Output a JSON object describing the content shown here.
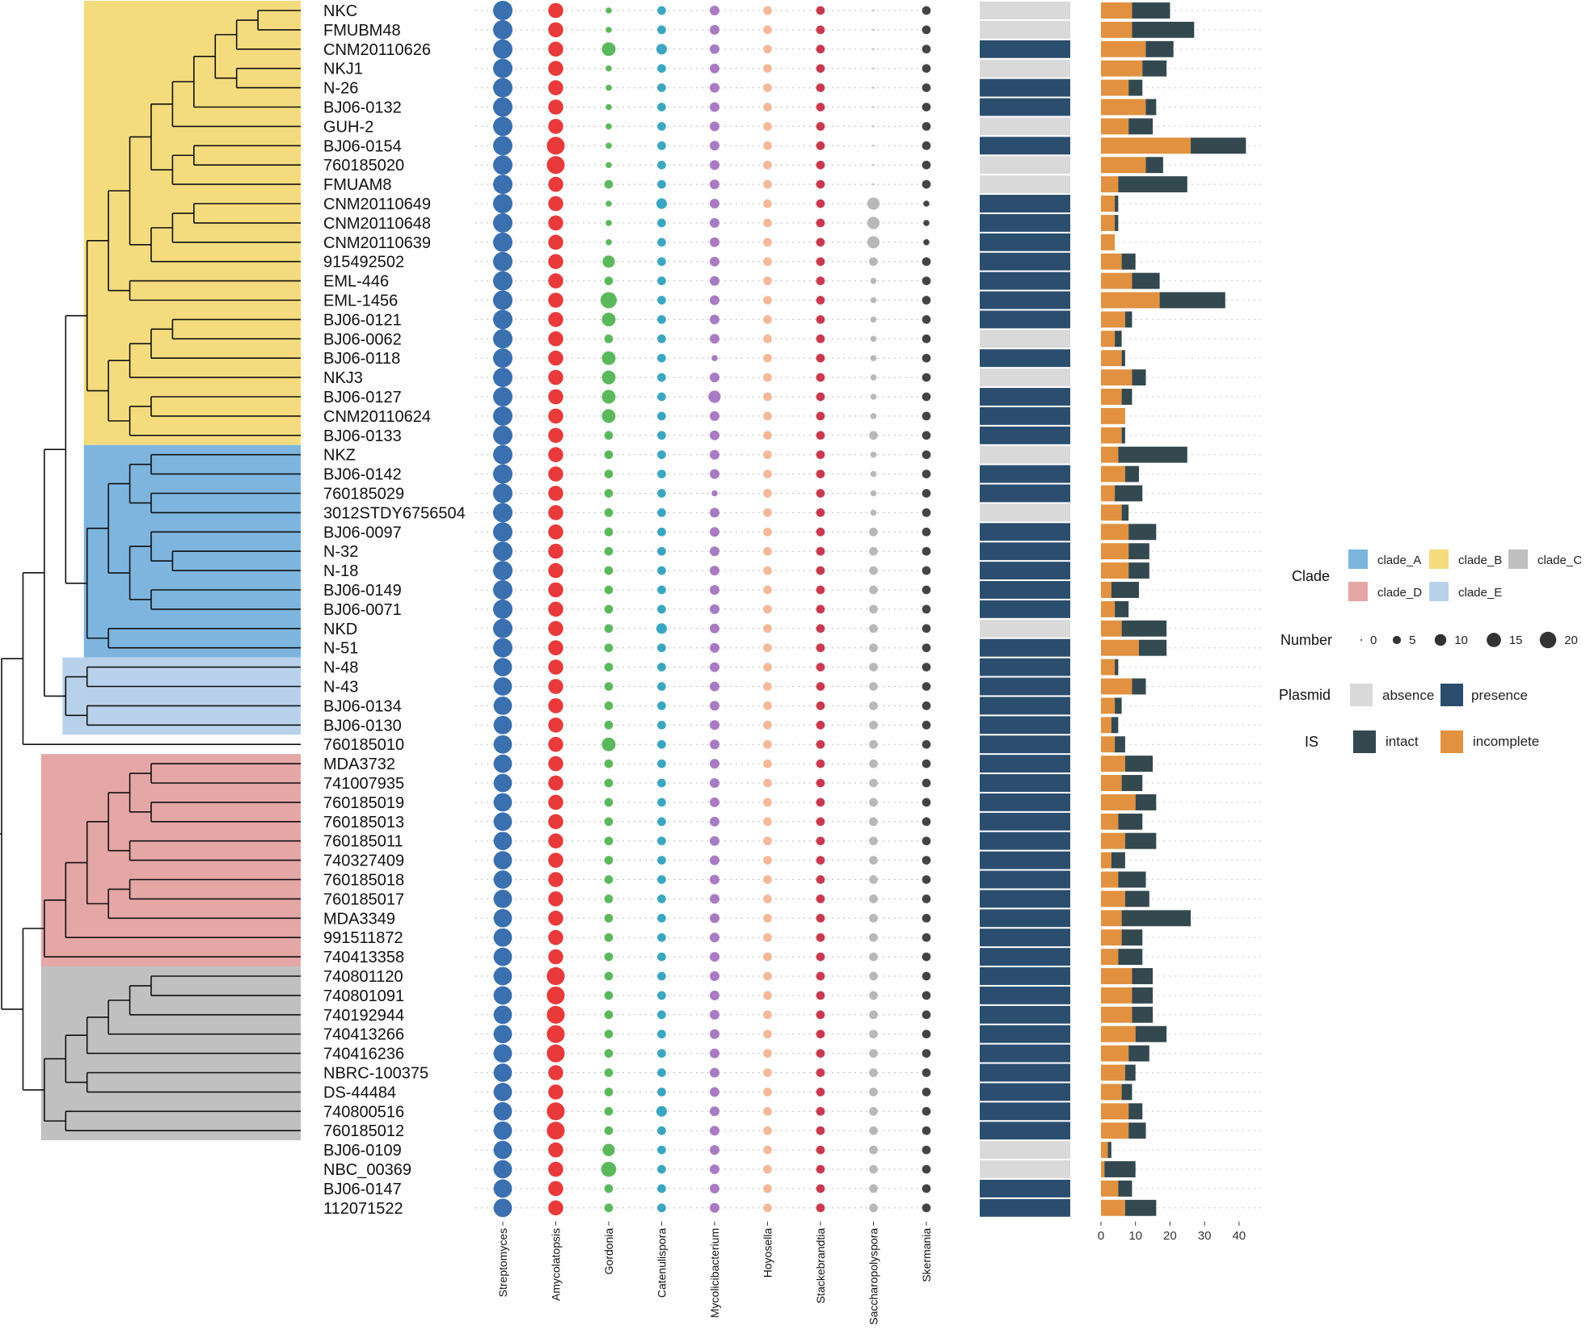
{
  "chart_data": {
    "type": "phylogenetic-tree-heatmap",
    "taxa": [
      "NKC",
      "FMUBM48",
      "CNM20110626",
      "NKJ1",
      "N-26",
      "BJ06-0132",
      "GUH-2",
      "BJ06-0154",
      "760185020",
      "FMUAM8",
      "CNM20110649",
      "CNM20110648",
      "CNM20110639",
      "915492502",
      "EML-446",
      "EML-1456",
      "BJ06-0121",
      "BJ06-0062",
      "BJ06-0118",
      "NKJ3",
      "BJ06-0127",
      "CNM20110624",
      "BJ06-0133",
      "NKZ",
      "BJ06-0142",
      "760185029",
      "3012STDY6756504",
      "BJ06-0097",
      "N-32",
      "N-18",
      "BJ06-0149",
      "BJ06-0071",
      "NKD",
      "N-51",
      "N-48",
      "N-43",
      "BJ06-0134",
      "BJ06-0130",
      "760185010",
      "MDA3732",
      "741007935",
      "760185019",
      "760185013",
      "760185011",
      "740327409",
      "760185018",
      "760185017",
      "MDA3349",
      "991511872",
      "740413358",
      "740801120",
      "740801091",
      "740192944",
      "740413266",
      "740416236",
      "NBRC-100375",
      "DS-44484",
      "740800516",
      "760185012",
      "BJ06-0109",
      "NBC_00369",
      "BJ06-0147",
      "112071522"
    ],
    "tree": {
      "depths": [
        0,
        10,
        12,
        16,
        14,
        12,
        14,
        12,
        14,
        15,
        18,
        14,
        16,
        14,
        14,
        14,
        13,
        15,
        16,
        16,
        10,
        11,
        14,
        13,
        14,
        16,
        15,
        14,
        14,
        11,
        13,
        12,
        12,
        13,
        14,
        16,
        15,
        14,
        14,
        14,
        12,
        14,
        13,
        12,
        8,
        14,
        11,
        13,
        14,
        15,
        15,
        15,
        12,
        15,
        16,
        16,
        17,
        17,
        14,
        15,
        15,
        12,
        14,
        14,
        13,
        14,
        13,
        14,
        15,
        15,
        14,
        12,
        12,
        14,
        13,
        14,
        14,
        12,
        14,
        15,
        15,
        14,
        13,
        14,
        14,
        13,
        13,
        14,
        17,
        17,
        15,
        12,
        15,
        14,
        6,
        7,
        5,
        7,
        7,
        8,
        7,
        7,
        10,
        10,
        5
      ],
      "node_ids": {
        "root": "root"
      },
      "newick": "(((((((((((((NKC,FMUBM48),CNM20110626),(NKJ1,N-26)),BJ06-0132),GUH-2),((BJ06-0154,760185020),FMUAM8)),(((CNM20110649,CNM20110648),CNM20110639),915492502)),(EML-446,EML-1456)),((((BJ06-0121,BJ06-0062),BJ06-0118),NKJ3),((BJ06-0127,CNM20110624),BJ06-0133))),((((NKZ,BJ06-0142),(760185029,3012STDY6756504)),((BJ06-0097,(N-32,N-18)),(BJ06-0149,BJ06-0071))),(NKD,N-51))),((N-48,N-43),(BJ06-0134,BJ06-0130))),760185010),(((((((MDA3732,741007935),(760185019,760185013)),(760185011,740327409)),((760185018,760185017),MDA3349)),991511872),740413358),((((((740801120,740801091),740192944),740413266),740416236),(NBRC-100375,DS-44484)),(740800516,760185012)))),BJ06-0109),((NBC_00369,BJ06-0147),112071522));"
    },
    "clades": [
      {
        "name": "clade_B",
        "color": "#F4DC7E",
        "first": 0,
        "last": 22
      },
      {
        "name": "clade_A",
        "color": "#7DB5DE",
        "first": 23,
        "last": 33
      },
      {
        "name": "clade_E",
        "color": "#BAD1EC",
        "first": 34,
        "last": 37
      },
      {
        "name": "clade_D",
        "color": "#E5A6A6",
        "first": 39,
        "last": 49
      },
      {
        "name": "clade_C",
        "color": "#C0C0C0",
        "first": 50,
        "last": 58
      }
    ],
    "genera": [
      {
        "name": "Streptomyces",
        "color": "#3A6FB0",
        "values": [
          20,
          20,
          20,
          20,
          20,
          20,
          20,
          20,
          20,
          20,
          20,
          20,
          20,
          20,
          20,
          20,
          20,
          20,
          20,
          20,
          20,
          20,
          20,
          20,
          20,
          20,
          20,
          20,
          20,
          20,
          20,
          20,
          20,
          20,
          18,
          18,
          18,
          18,
          18,
          18,
          18,
          18,
          18,
          18,
          18,
          18,
          18,
          18,
          18,
          18,
          18,
          18,
          18,
          18,
          18,
          18,
          18,
          18,
          18,
          18,
          18,
          18,
          18
        ]
      },
      {
        "name": "Amycolatopsis",
        "color": "#E83A3A",
        "values": [
          12,
          12,
          12,
          12,
          12,
          12,
          12,
          17,
          17,
          12,
          12,
          12,
          12,
          12,
          12,
          12,
          12,
          12,
          12,
          12,
          12,
          12,
          12,
          12,
          12,
          12,
          12,
          12,
          12,
          12,
          12,
          12,
          12,
          12,
          12,
          12,
          12,
          12,
          12,
          12,
          12,
          12,
          12,
          12,
          12,
          12,
          12,
          12,
          12,
          12,
          17,
          17,
          17,
          17,
          17,
          12,
          12,
          17,
          17,
          12,
          12,
          12,
          12
        ]
      },
      {
        "name": "Gordonia",
        "color": "#5CB85C",
        "values": [
          2,
          2,
          10,
          2,
          2,
          2,
          2,
          2,
          2,
          4,
          2,
          2,
          2,
          8,
          4,
          14,
          10,
          4,
          10,
          10,
          10,
          10,
          4,
          4,
          4,
          4,
          4,
          4,
          4,
          4,
          4,
          4,
          4,
          4,
          4,
          4,
          4,
          4,
          10,
          4,
          4,
          4,
          4,
          4,
          4,
          4,
          4,
          4,
          4,
          4,
          4,
          4,
          4,
          4,
          4,
          4,
          4,
          4,
          4,
          8,
          12,
          4,
          4
        ]
      },
      {
        "name": "Catenulispora",
        "color": "#3AA6C2",
        "values": [
          4,
          4,
          6,
          4,
          4,
          4,
          4,
          4,
          4,
          4,
          6,
          4,
          4,
          4,
          4,
          4,
          4,
          4,
          4,
          4,
          4,
          4,
          4,
          4,
          4,
          4,
          4,
          4,
          4,
          4,
          4,
          4,
          6,
          4,
          4,
          4,
          4,
          4,
          4,
          4,
          4,
          4,
          4,
          4,
          4,
          4,
          4,
          4,
          4,
          4,
          4,
          4,
          4,
          4,
          4,
          4,
          4,
          6,
          4,
          4,
          4,
          4,
          4
        ]
      },
      {
        "name": "Mycolicibacterium",
        "color": "#A97BC3",
        "values": [
          5,
          5,
          5,
          5,
          5,
          5,
          5,
          5,
          5,
          5,
          5,
          5,
          5,
          5,
          5,
          5,
          5,
          5,
          2,
          5,
          8,
          5,
          5,
          5,
          5,
          2,
          5,
          5,
          5,
          5,
          5,
          5,
          5,
          5,
          5,
          5,
          5,
          5,
          5,
          5,
          5,
          5,
          5,
          5,
          5,
          5,
          5,
          5,
          5,
          5,
          5,
          5,
          5,
          5,
          5,
          5,
          5,
          5,
          5,
          5,
          5,
          5,
          5
        ]
      },
      {
        "name": "Hoyosella",
        "color": "#F4B89A",
        "values": [
          4,
          4,
          4,
          4,
          4,
          4,
          4,
          4,
          4,
          4,
          4,
          4,
          4,
          4,
          4,
          4,
          4,
          4,
          4,
          4,
          4,
          4,
          4,
          4,
          4,
          4,
          4,
          4,
          4,
          4,
          4,
          4,
          4,
          4,
          4,
          4,
          4,
          4,
          4,
          4,
          4,
          4,
          4,
          4,
          4,
          4,
          4,
          4,
          4,
          4,
          4,
          4,
          4,
          4,
          4,
          4,
          4,
          4,
          4,
          4,
          4,
          4,
          4
        ]
      },
      {
        "name": "Stackebrandtia",
        "color": "#C93A4E",
        "values": [
          4,
          4,
          4,
          4,
          4,
          4,
          4,
          4,
          4,
          4,
          4,
          4,
          4,
          4,
          4,
          4,
          4,
          4,
          4,
          4,
          4,
          4,
          4,
          4,
          4,
          4,
          4,
          4,
          4,
          4,
          4,
          4,
          4,
          4,
          4,
          4,
          4,
          4,
          4,
          4,
          4,
          4,
          4,
          4,
          4,
          4,
          4,
          4,
          4,
          4,
          4,
          4,
          4,
          4,
          4,
          4,
          4,
          4,
          4,
          4,
          4,
          4,
          4
        ]
      },
      {
        "name": "Saccharopolyspora",
        "color": "#B8B8B8",
        "values": [
          0,
          0,
          0,
          0,
          0,
          0,
          0,
          0,
          0,
          0,
          8,
          8,
          8,
          4,
          2,
          2,
          2,
          2,
          2,
          2,
          2,
          2,
          4,
          2,
          2,
          2,
          2,
          4,
          4,
          4,
          4,
          4,
          4,
          4,
          4,
          4,
          4,
          4,
          4,
          4,
          4,
          4,
          4,
          4,
          4,
          4,
          4,
          4,
          4,
          4,
          4,
          4,
          4,
          4,
          4,
          4,
          4,
          4,
          4,
          4,
          4,
          4,
          4
        ]
      },
      {
        "name": "Skermania",
        "color": "#444444",
        "values": [
          4,
          4,
          4,
          4,
          4,
          4,
          4,
          4,
          4,
          4,
          2,
          2,
          2,
          4,
          4,
          4,
          4,
          4,
          4,
          4,
          4,
          4,
          4,
          4,
          4,
          4,
          4,
          4,
          4,
          4,
          4,
          4,
          4,
          4,
          4,
          4,
          4,
          4,
          4,
          4,
          4,
          4,
          4,
          4,
          4,
          4,
          4,
          4,
          4,
          4,
          4,
          4,
          4,
          4,
          4,
          4,
          4,
          4,
          4,
          4,
          4,
          4,
          4
        ]
      }
    ],
    "plasmid": [
      "absence",
      "absence",
      "presence",
      "absence",
      "presence",
      "presence",
      "absence",
      "presence",
      "absence",
      "absence",
      "presence",
      "presence",
      "presence",
      "presence",
      "presence",
      "presence",
      "presence",
      "absence",
      "presence",
      "absence",
      "presence",
      "presence",
      "presence",
      "absence",
      "presence",
      "presence",
      "absence",
      "presence",
      "presence",
      "presence",
      "presence",
      "presence",
      "absence",
      "presence",
      "presence",
      "presence",
      "presence",
      "presence",
      "presence",
      "presence",
      "presence",
      "presence",
      "presence",
      "presence",
      "presence",
      "presence",
      "presence",
      "presence",
      "presence",
      "presence",
      "presence",
      "presence",
      "presence",
      "presence",
      "presence",
      "presence",
      "presence",
      "presence",
      "presence",
      "absence",
      "absence",
      "presence",
      "presence"
    ],
    "is_incomplete": [
      9,
      9,
      13,
      12,
      8,
      13,
      8,
      26,
      13,
      5,
      4,
      4,
      4,
      6,
      9,
      17,
      7,
      4,
      6,
      9,
      6,
      7,
      6,
      5,
      7,
      4,
      6,
      8,
      8,
      8,
      3,
      4,
      6,
      11,
      4,
      9,
      4,
      3,
      4,
      7,
      6,
      10,
      5,
      7,
      3,
      5,
      7,
      6,
      6,
      5,
      9,
      9,
      9,
      10,
      8,
      7,
      6,
      8,
      8,
      2,
      1,
      5,
      7
    ],
    "is_intact": [
      11,
      18,
      8,
      7,
      4,
      3,
      7,
      16,
      5,
      20,
      1,
      1,
      0,
      4,
      8,
      19,
      2,
      2,
      1,
      4,
      3,
      0,
      1,
      20,
      4,
      8,
      2,
      8,
      6,
      6,
      8,
      4,
      13,
      8,
      1,
      4,
      2,
      2,
      3,
      8,
      6,
      6,
      7,
      9,
      4,
      8,
      7,
      20,
      6,
      7,
      6,
      6,
      6,
      9,
      6,
      3,
      3,
      4,
      5,
      1,
      9,
      4,
      9
    ],
    "is_axis": {
      "ticks": [
        0,
        10,
        20,
        30,
        40
      ],
      "xlim": [
        0,
        43
      ]
    },
    "number_legend": [
      0,
      5,
      10,
      15,
      20
    ],
    "plasmid_colors": {
      "absence": "#D9D9D9",
      "presence": "#2B4E6E"
    },
    "is_colors": {
      "intact": "#34484F",
      "incomplete": "#E1913F"
    },
    "legend": {
      "clade_title": "Clade",
      "clade_items": [
        "clade_A",
        "clade_B",
        "clade_C",
        "clade_D",
        "clade_E"
      ],
      "number_title": "Number",
      "plasmid_title": "Plasmid",
      "plasmid_items": [
        "absence",
        "presence"
      ],
      "is_title": "IS",
      "is_items": [
        "intact",
        "incomplete"
      ]
    }
  }
}
